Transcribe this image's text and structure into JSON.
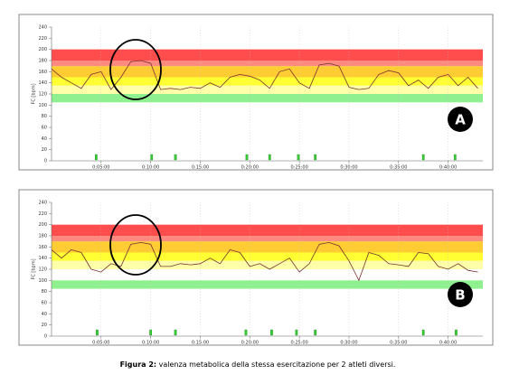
{
  "chart_data": [
    {
      "type": "line",
      "label": "A",
      "y_label": "FC [bpm]",
      "xlim": [
        0,
        43.5
      ],
      "ylim": [
        0,
        240
      ],
      "yticks": [
        0,
        20,
        40,
        60,
        80,
        100,
        120,
        140,
        160,
        180,
        200,
        220,
        240
      ],
      "xticks": [
        {
          "value": 5,
          "label": "0:05:00"
        },
        {
          "value": 10,
          "label": "0:10:00"
        },
        {
          "value": 15,
          "label": "0:15:00"
        },
        {
          "value": 20,
          "label": "0:20:00"
        },
        {
          "value": 25,
          "label": "0:25:00"
        },
        {
          "value": 30,
          "label": "0:30:00"
        },
        {
          "value": 35,
          "label": "0:35:00"
        },
        {
          "value": 40,
          "label": "0:40:00"
        }
      ],
      "grid": true,
      "bands": [
        {
          "from": 180,
          "to": 200,
          "color": "#ff4d4d"
        },
        {
          "from": 170,
          "to": 180,
          "color": "#ff8a80"
        },
        {
          "from": 150,
          "to": 170,
          "color": "#ffcc33"
        },
        {
          "from": 135,
          "to": 150,
          "color": "#ffff33"
        },
        {
          "from": 120,
          "to": 135,
          "color": "#ffffaa"
        },
        {
          "from": 105,
          "to": 120,
          "color": "#8ef08e"
        }
      ],
      "x": [
        0,
        1,
        2,
        3,
        4,
        5,
        6,
        7,
        8,
        9,
        10,
        11,
        12,
        13,
        14,
        15,
        16,
        17,
        18,
        19,
        20,
        21,
        22,
        23,
        24,
        25,
        26,
        27,
        28,
        29,
        30,
        31,
        32,
        33,
        34,
        35,
        36,
        37,
        38,
        39,
        40,
        41,
        42,
        43
      ],
      "values": [
        165,
        150,
        140,
        130,
        155,
        160,
        128,
        150,
        178,
        180,
        175,
        128,
        130,
        128,
        132,
        130,
        140,
        132,
        150,
        155,
        152,
        145,
        130,
        160,
        165,
        140,
        130,
        172,
        175,
        170,
        132,
        128,
        130,
        155,
        162,
        158,
        135,
        145,
        130,
        150,
        155,
        135,
        150,
        130
      ],
      "color": "#7a3030",
      "markers": [
        4.5,
        10.1,
        12.5,
        19.7,
        22,
        24.9,
        26.6,
        37.5,
        40.7
      ],
      "marker_color": "#33cc33"
    },
    {
      "type": "line",
      "label": "B",
      "y_label": "FC [bpm]",
      "xlim": [
        0,
        43.5
      ],
      "ylim": [
        0,
        240
      ],
      "yticks": [
        0,
        20,
        40,
        60,
        80,
        100,
        120,
        140,
        160,
        180,
        200,
        220,
        240
      ],
      "xticks": [
        {
          "value": 5,
          "label": "0:05:00"
        },
        {
          "value": 10,
          "label": "0:10:00"
        },
        {
          "value": 15,
          "label": "0:15:00"
        },
        {
          "value": 20,
          "label": "0:20:00"
        },
        {
          "value": 25,
          "label": "0:25:00"
        },
        {
          "value": 30,
          "label": "0:30:00"
        },
        {
          "value": 35,
          "label": "0:35:00"
        },
        {
          "value": 40,
          "label": "0:40:00"
        }
      ],
      "grid": true,
      "bands": [
        {
          "from": 180,
          "to": 200,
          "color": "#ff4d4d"
        },
        {
          "from": 170,
          "to": 180,
          "color": "#ff8a80"
        },
        {
          "from": 150,
          "to": 170,
          "color": "#ffcc33"
        },
        {
          "from": 135,
          "to": 150,
          "color": "#ffff33"
        },
        {
          "from": 120,
          "to": 135,
          "color": "#ffffaa"
        },
        {
          "from": 85,
          "to": 100,
          "color": "#8ef08e"
        }
      ],
      "x": [
        0,
        1,
        2,
        3,
        4,
        5,
        6,
        7,
        8,
        9,
        10,
        11,
        12,
        13,
        14,
        15,
        16,
        17,
        18,
        19,
        20,
        21,
        22,
        23,
        24,
        25,
        26,
        27,
        28,
        29,
        30,
        31,
        32,
        33,
        34,
        35,
        36,
        37,
        38,
        39,
        40,
        41,
        42,
        43
      ],
      "values": [
        155,
        140,
        155,
        150,
        120,
        115,
        130,
        125,
        165,
        168,
        165,
        125,
        125,
        130,
        128,
        130,
        140,
        130,
        155,
        150,
        125,
        130,
        120,
        130,
        140,
        115,
        130,
        165,
        168,
        162,
        135,
        100,
        150,
        145,
        130,
        128,
        125,
        150,
        148,
        125,
        120,
        130,
        118,
        115
      ],
      "color": "#7a3030",
      "markers": [
        4.6,
        10,
        12.5,
        19.6,
        22.2,
        24.7,
        26.6,
        37.5,
        40.8
      ],
      "marker_color": "#33cc33"
    }
  ],
  "caption": {
    "label": "Figura 2:",
    "text": "valenza metabolica della stessa esercitazione per 2 atleti diversi."
  }
}
